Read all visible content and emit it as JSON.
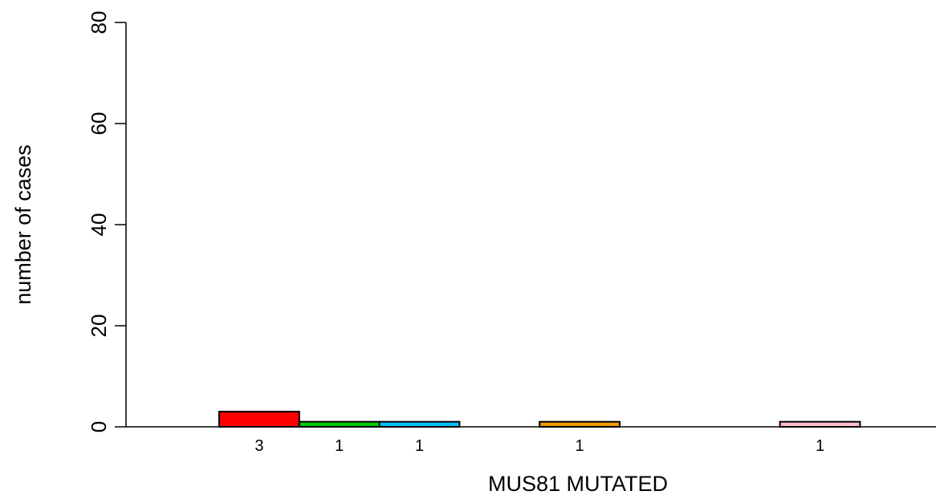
{
  "chart_data": {
    "type": "bar",
    "xlabel": "MUS81 MUTATED",
    "ylabel": "number of cases",
    "ylim": [
      0,
      80
    ],
    "yticks": [
      0,
      20,
      40,
      60,
      80
    ],
    "bar_slots": 9,
    "bars": [
      {
        "slot": 0,
        "value": 3,
        "label": "3",
        "color": "#ff0000"
      },
      {
        "slot": 1,
        "value": 1,
        "label": "1",
        "color": "#00cd00"
      },
      {
        "slot": 2,
        "value": 1,
        "label": "1",
        "color": "#00bfff"
      },
      {
        "slot": 4,
        "value": 1,
        "label": "1",
        "color": "#ee9a00"
      },
      {
        "slot": 7,
        "value": 1,
        "label": "1",
        "color": "#ffc0cb"
      }
    ]
  }
}
